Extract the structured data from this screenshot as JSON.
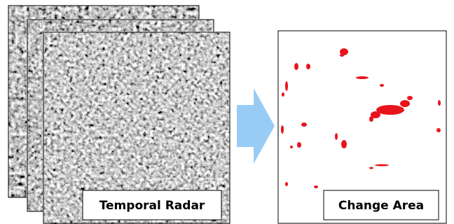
{
  "labels": {
    "left": "Temporal Radar",
    "right": "Change Area"
  }
}
